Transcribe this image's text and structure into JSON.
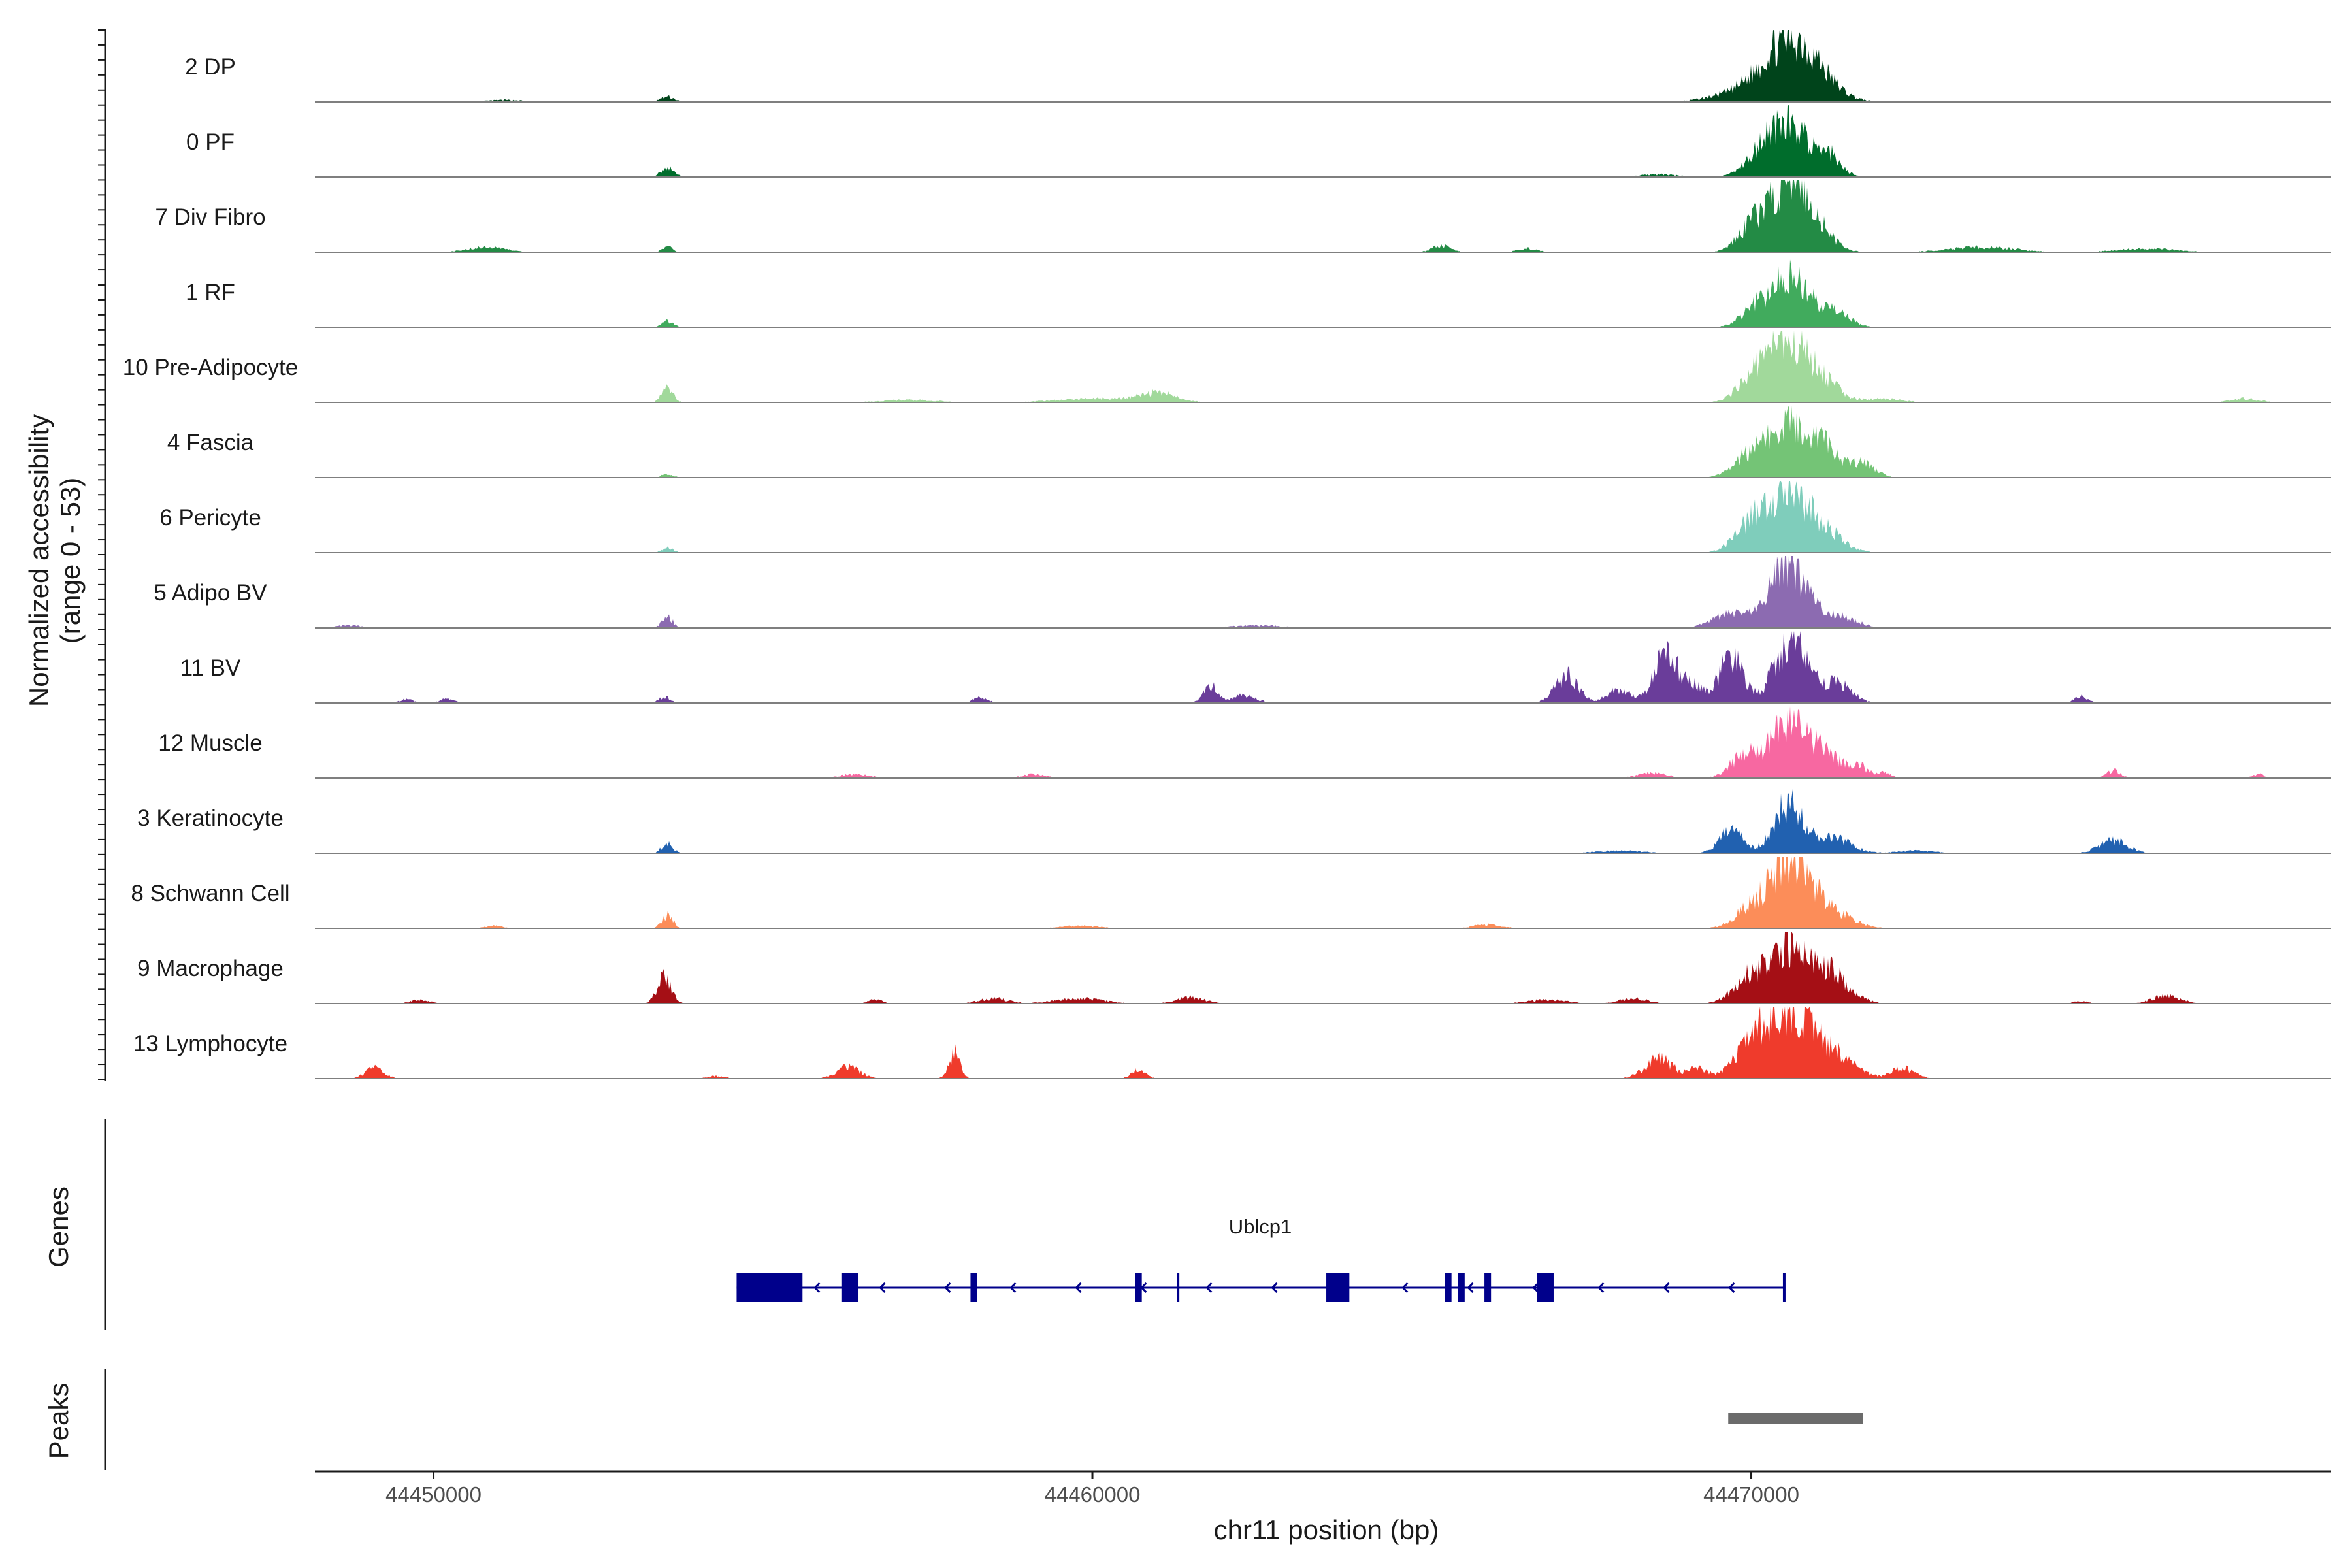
{
  "chart_data": {
    "type": "area",
    "title": "",
    "ylabel": "Normalized accessibility",
    "ylabel_range": "(range 0 - 53)",
    "ylim": [
      0,
      53
    ],
    "xlabel": "chr11 position (bp)",
    "xlim": [
      44448200,
      44478800
    ],
    "xticks": [
      44450000,
      44460000,
      44470000
    ],
    "xtick_labels": [
      "44450000",
      "44460000",
      "44470000"
    ],
    "tracks": [
      {
        "label": "2 DP",
        "color": "#00441b",
        "peaks": [
          [
            44470550,
            44,
            550
          ],
          [
            44470950,
            12,
            500
          ],
          [
            44469800,
            6,
            600
          ],
          [
            44453550,
            4,
            150
          ],
          [
            44451100,
            1.5,
            400
          ]
        ]
      },
      {
        "label": "0 PF",
        "color": "#006d2c",
        "peaks": [
          [
            44470550,
            43,
            450
          ],
          [
            44471200,
            14,
            250
          ],
          [
            44470100,
            8,
            350
          ],
          [
            44453550,
            7,
            150
          ],
          [
            44468600,
            2,
            400
          ]
        ]
      },
      {
        "label": "7 Div Fibro",
        "color": "#238b45",
        "peaks": [
          [
            44470550,
            52,
            420
          ],
          [
            44470000,
            16,
            300
          ],
          [
            44471000,
            14,
            350
          ],
          [
            44453550,
            5,
            100
          ],
          [
            44450800,
            4,
            400
          ],
          [
            44465300,
            5,
            200
          ],
          [
            44466600,
            3,
            200
          ],
          [
            44473500,
            4,
            700
          ],
          [
            44476000,
            3,
            600
          ]
        ]
      },
      {
        "label": "1 RF",
        "color": "#41ab5d",
        "peaks": [
          [
            44470600,
            40,
            420
          ],
          [
            44470050,
            12,
            300
          ],
          [
            44471300,
            10,
            300
          ],
          [
            44453550,
            5,
            120
          ]
        ]
      },
      {
        "label": "10 Pre-Adipocyte",
        "color": "#a1d99b",
        "peaks": [
          [
            44470550,
            48,
            420
          ],
          [
            44470050,
            17,
            350
          ],
          [
            44471100,
            14,
            350
          ],
          [
            44453550,
            11,
            120
          ],
          [
            44461000,
            7,
            400
          ],
          [
            44460000,
            3,
            800
          ],
          [
            44457200,
            2,
            600
          ],
          [
            44472000,
            3,
            400
          ],
          [
            44477500,
            3,
            300
          ]
        ]
      },
      {
        "label": "4 Fascia",
        "color": "#74c476",
        "peaks": [
          [
            44470600,
            40,
            420
          ],
          [
            44470000,
            17,
            350
          ],
          [
            44471100,
            20,
            350
          ],
          [
            44471700,
            12,
            250
          ],
          [
            44453550,
            3,
            120
          ]
        ]
      },
      {
        "label": "6 Pericyte",
        "color": "#7fcdbb",
        "peaks": [
          [
            44470550,
            44,
            450
          ],
          [
            44470000,
            19,
            350
          ],
          [
            44471100,
            14,
            400
          ],
          [
            44453550,
            4,
            120
          ]
        ]
      },
      {
        "label": "5 Adipo BV",
        "color": "#8c6bb1",
        "peaks": [
          [
            44470550,
            48,
            400
          ],
          [
            44469700,
            11,
            400
          ],
          [
            44471300,
            9,
            400
          ],
          [
            44453550,
            8,
            120
          ],
          [
            44448700,
            2,
            300
          ],
          [
            44462500,
            2,
            500
          ]
        ]
      },
      {
        "label": "11 BV",
        "color": "#6a3d9a",
        "peaks": [
          [
            44467200,
            21,
            250
          ],
          [
            44468700,
            36,
            250
          ],
          [
            44469700,
            37,
            250
          ],
          [
            44470600,
            50,
            350
          ],
          [
            44471300,
            16,
            300
          ],
          [
            44469100,
            13,
            250
          ],
          [
            44468000,
            11,
            250
          ],
          [
            44461800,
            14,
            150
          ],
          [
            44462300,
            6,
            250
          ],
          [
            44453500,
            5,
            120
          ],
          [
            44449600,
            3,
            150
          ],
          [
            44450200,
            3,
            150
          ],
          [
            44458300,
            5,
            150
          ],
          [
            44475000,
            5,
            150
          ]
        ]
      },
      {
        "label": "12 Muscle",
        "color": "#f768a1",
        "peaks": [
          [
            44470550,
            46,
            350
          ],
          [
            44469900,
            18,
            300
          ],
          [
            44471100,
            21,
            300
          ],
          [
            44471600,
            11,
            200
          ],
          [
            44472000,
            5,
            150
          ],
          [
            44468500,
            4,
            300
          ],
          [
            44456400,
            3,
            300
          ],
          [
            44459100,
            3,
            250
          ],
          [
            44475500,
            6,
            150
          ],
          [
            44477700,
            3,
            150
          ]
        ]
      },
      {
        "label": "3 Keratinocyte",
        "color": "#2161b0",
        "peaks": [
          [
            44470550,
            38,
            300
          ],
          [
            44469700,
            18,
            250
          ],
          [
            44471200,
            13,
            400
          ],
          [
            44475500,
            10,
            300
          ],
          [
            44453550,
            8,
            120
          ],
          [
            44468000,
            2,
            500
          ],
          [
            44472500,
            2,
            400
          ]
        ]
      },
      {
        "label": "8 Schwann Cell",
        "color": "#fc8d59",
        "peaks": [
          [
            44470600,
            52,
            420
          ],
          [
            44470000,
            14,
            350
          ],
          [
            44471200,
            12,
            450
          ],
          [
            44453550,
            10,
            120
          ],
          [
            44450900,
            2,
            200
          ],
          [
            44459800,
            2,
            400
          ],
          [
            44466000,
            3,
            300
          ]
        ]
      },
      {
        "label": "9 Macrophage",
        "color": "#a50f15",
        "peaks": [
          [
            44470600,
            42,
            400
          ],
          [
            44470000,
            21,
            350
          ],
          [
            44471200,
            23,
            400
          ],
          [
            44453500,
            20,
            150
          ],
          [
            44458500,
            4,
            300
          ],
          [
            44461500,
            5,
            300
          ],
          [
            44459800,
            4,
            500
          ],
          [
            44466900,
            3,
            400
          ],
          [
            44476300,
            6,
            300
          ],
          [
            44475000,
            2,
            150
          ],
          [
            44468200,
            4,
            300
          ],
          [
            44449800,
            3,
            200
          ],
          [
            44456700,
            3,
            150
          ]
        ]
      },
      {
        "label": "13 Lymphocyte",
        "color": "#ef3b2c",
        "peaks": [
          [
            44470550,
            50,
            450
          ],
          [
            44470000,
            25,
            350
          ],
          [
            44471200,
            20,
            450
          ],
          [
            44457900,
            20,
            120
          ],
          [
            44456300,
            9,
            250
          ],
          [
            44449100,
            8,
            200
          ],
          [
            44468600,
            16,
            300
          ],
          [
            44460700,
            7,
            150
          ],
          [
            44472300,
            8,
            250
          ],
          [
            44469200,
            8,
            200
          ],
          [
            44454300,
            2,
            200
          ]
        ]
      }
    ],
    "genes_title": "Genes",
    "gene": {
      "name": "Ublcp1",
      "start": 44454600,
      "end": 44470500,
      "strand": "-",
      "color": "#00008b",
      "exons": [
        [
          44454600,
          44455600
        ],
        [
          44456200,
          44456450
        ],
        [
          44458150,
          44458250
        ],
        [
          44460650,
          44460750
        ],
        [
          44463550,
          44463900
        ],
        [
          44465350,
          44465450
        ],
        [
          44465550,
          44465650
        ],
        [
          44465950,
          44466050
        ],
        [
          44466750,
          44467000
        ]
      ],
      "markers": [
        44461300,
        44470500
      ]
    },
    "peaks_title": "Peaks",
    "peak_regions": [
      [
        44469650,
        44471700
      ]
    ],
    "peak_color": "#6b6b6b"
  }
}
